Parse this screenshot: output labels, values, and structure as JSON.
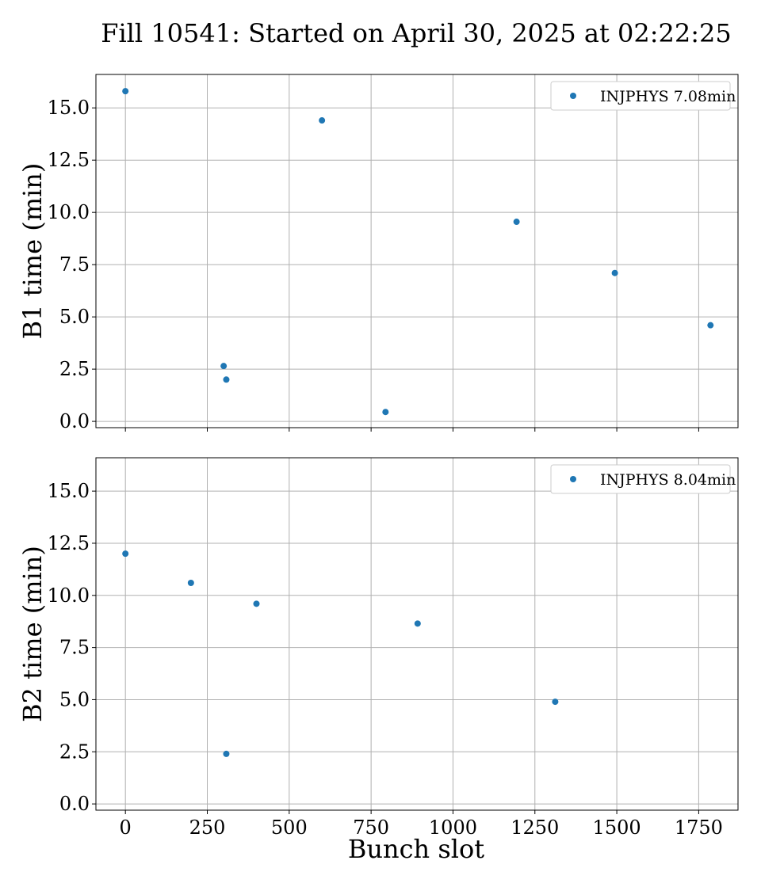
{
  "chart_data": [
    {
      "type": "scatter",
      "title": "Fill 10541: Started on April 30, 2025 at 02:22:25",
      "xlabel": "",
      "ylabel": "B1 time (min)",
      "xlim": [
        -90,
        1870
      ],
      "ylim": [
        -0.3,
        16.6
      ],
      "xticks": [
        0,
        250,
        500,
        750,
        1000,
        1250,
        1500,
        1750
      ],
      "yticks": [
        0.0,
        2.5,
        5.0,
        7.5,
        10.0,
        12.5,
        15.0
      ],
      "ytick_labels": [
        "0.0",
        "2.5",
        "5.0",
        "7.5",
        "10.0",
        "12.5",
        "15.0"
      ],
      "xtick_labels_shown": false,
      "grid": true,
      "legend": "top-right",
      "series": [
        {
          "name": "INJPHYS 7.08min",
          "color": "#1f77b4",
          "x": [
            0,
            300,
            308,
            600,
            794,
            1194,
            1494,
            1786
          ],
          "y": [
            15.8,
            2.65,
            2.0,
            14.4,
            0.45,
            9.55,
            7.1,
            4.6
          ]
        }
      ]
    },
    {
      "type": "scatter",
      "title": "",
      "xlabel": "Bunch slot",
      "ylabel": "B2 time (min)",
      "xlim": [
        -90,
        1870
      ],
      "ylim": [
        -0.3,
        16.6
      ],
      "xticks": [
        0,
        250,
        500,
        750,
        1000,
        1250,
        1500,
        1750
      ],
      "xtick_labels": [
        "0",
        "250",
        "500",
        "750",
        "1000",
        "1250",
        "1500",
        "1750"
      ],
      "yticks": [
        0.0,
        2.5,
        5.0,
        7.5,
        10.0,
        12.5,
        15.0
      ],
      "ytick_labels": [
        "0.0",
        "2.5",
        "5.0",
        "7.5",
        "10.0",
        "12.5",
        "15.0"
      ],
      "xtick_labels_shown": true,
      "grid": true,
      "legend": "top-right",
      "series": [
        {
          "name": "INJPHYS 8.04min",
          "color": "#1f77b4",
          "x": [
            0,
            200,
            308,
            400,
            892,
            1312
          ],
          "y": [
            12.0,
            10.6,
            2.4,
            9.6,
            8.65,
            4.9
          ]
        }
      ]
    }
  ]
}
